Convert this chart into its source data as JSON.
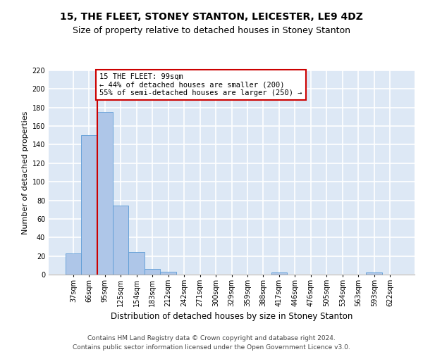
{
  "title1": "15, THE FLEET, STONEY STANTON, LEICESTER, LE9 4DZ",
  "title2": "Size of property relative to detached houses in Stoney Stanton",
  "xlabel": "Distribution of detached houses by size in Stoney Stanton",
  "ylabel": "Number of detached properties",
  "categories": [
    "37sqm",
    "66sqm",
    "95sqm",
    "125sqm",
    "154sqm",
    "183sqm",
    "212sqm",
    "242sqm",
    "271sqm",
    "300sqm",
    "329sqm",
    "359sqm",
    "388sqm",
    "417sqm",
    "446sqm",
    "476sqm",
    "505sqm",
    "534sqm",
    "563sqm",
    "593sqm",
    "622sqm"
  ],
  "values": [
    23,
    150,
    175,
    74,
    24,
    6,
    3,
    0,
    0,
    0,
    0,
    0,
    0,
    2,
    0,
    0,
    0,
    0,
    0,
    2,
    0
  ],
  "bar_color": "#aec6e8",
  "bar_edge_color": "#5b9bd5",
  "background_color": "#dde8f5",
  "grid_color": "#ffffff",
  "annotation_text": "15 THE FLEET: 99sqm\n← 44% of detached houses are smaller (200)\n55% of semi-detached houses are larger (250) →",
  "annotation_box_color": "#ffffff",
  "annotation_box_edge": "#cc0000",
  "vline_color": "#cc0000",
  "ylim": [
    0,
    220
  ],
  "yticks": [
    0,
    20,
    40,
    60,
    80,
    100,
    120,
    140,
    160,
    180,
    200,
    220
  ],
  "footer1": "Contains HM Land Registry data © Crown copyright and database right 2024.",
  "footer2": "Contains public sector information licensed under the Open Government Licence v3.0.",
  "title1_fontsize": 10,
  "title2_fontsize": 9,
  "xlabel_fontsize": 8.5,
  "ylabel_fontsize": 8,
  "tick_fontsize": 7,
  "footer_fontsize": 6.5,
  "ann_fontsize": 7.5
}
